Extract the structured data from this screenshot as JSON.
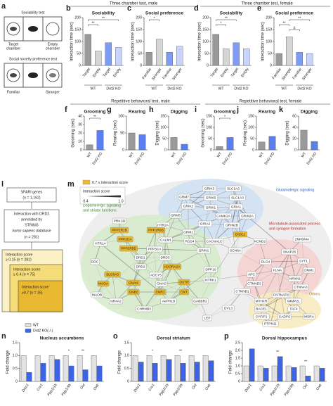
{
  "panel_a": {
    "label": "a",
    "test1": "Sociability test",
    "target": [
      "Target",
      "chamber"
    ],
    "empty": [
      "Empty",
      "chamber"
    ],
    "test2": "Social novelty preference test",
    "familiar": "Familiar",
    "stranger": "Stranger"
  },
  "headers": {
    "three_male": "Three chamber test, male",
    "three_female": "Three chamber test, female",
    "rep_male": "Repetitive behavioral test, male",
    "rep_female": "Repetitive behavioral test, female"
  },
  "three_chamber": [
    {
      "label": "b",
      "title": "Sociability",
      "ylabel": "Interaction time (sec)",
      "categories": [
        "Target",
        "Empty",
        "Target",
        "Empty"
      ],
      "groups": [
        "WT",
        "Drd2 KO"
      ],
      "values": [
        130,
        60,
        95,
        75
      ],
      "colors": [
        "#9a9a9a",
        "#d6d6d6",
        "#7f9cf5",
        "#c8d4fb"
      ],
      "ylim": [
        0,
        200
      ],
      "yticks": [
        0,
        50,
        100,
        150,
        200
      ],
      "significance": [
        {
          "text": "**",
          "between": [
            0,
            3
          ]
        },
        {
          "text": "**",
          "between": [
            0,
            1
          ]
        }
      ]
    },
    {
      "label": "c",
      "title": "Social preference",
      "ylabel": "Interaction time (sec)",
      "categories": [
        "Familiar",
        "Stranger",
        "Familiar",
        "Stranger"
      ],
      "groups": [
        "WT",
        "Drd2 KO"
      ],
      "values": [
        55,
        110,
        55,
        80
      ],
      "colors": [
        "#9a9a9a",
        "#d6d6d6",
        "#7f9cf5",
        "#c8d4fb"
      ],
      "ylim": [
        0,
        200
      ],
      "yticks": [
        0,
        50,
        100,
        150,
        200
      ],
      "significance": [
        {
          "text": "*",
          "between": [
            0,
            1
          ]
        }
      ]
    },
    {
      "label": "d",
      "title": "Sociability",
      "ylabel": "Interaction time (sec)",
      "categories": [
        "Target",
        "Empty",
        "Target",
        "Empty"
      ],
      "groups": [
        "WT",
        "Drd2 KO"
      ],
      "values": [
        130,
        70,
        95,
        70
      ],
      "colors": [
        "#9a9a9a",
        "#d6d6d6",
        "#7f9cf5",
        "#c8d4fb"
      ],
      "ylim": [
        0,
        200
      ],
      "yticks": [
        0,
        50,
        100,
        150,
        200
      ],
      "significance": [
        {
          "text": "**",
          "between": [
            0,
            2
          ]
        },
        {
          "text": "*",
          "between": [
            0,
            1
          ]
        }
      ]
    },
    {
      "label": "e",
      "title": "Social preference",
      "ylabel": "Interaction time (sec)",
      "categories": [
        "Familiar",
        "Stranger",
        "Familiar",
        "Stranger"
      ],
      "groups": [
        "WT",
        "Drd2 KO"
      ],
      "values": [
        50,
        120,
        55,
        50
      ],
      "colors": [
        "#9a9a9a",
        "#d6d6d6",
        "#7f9cf5",
        "#c8d4fb"
      ],
      "ylim": [
        0,
        200
      ],
      "yticks": [
        0,
        50,
        100,
        150,
        200
      ],
      "significance": [
        {
          "text": "**",
          "between": [
            1,
            3
          ]
        },
        {
          "text": "**",
          "between": [
            0,
            1
          ]
        },
        {
          "text": "#",
          "between": [
            1,
            2
          ]
        }
      ]
    }
  ],
  "repetitive": [
    {
      "label": "f",
      "title": "Grooming",
      "ylabel": "Grooming (sec)",
      "categories": [
        "WT",
        "Drd2 KO"
      ],
      "values": [
        6,
        23
      ],
      "colors": [
        "#9a9a9a",
        "#5b7ff0"
      ],
      "ylim": [
        0,
        40
      ],
      "yticks": [
        0,
        10,
        20,
        30,
        40
      ],
      "significance": [
        {
          "text": "**",
          "between": [
            0,
            1
          ]
        }
      ]
    },
    {
      "label": "g",
      "title": "Rearing",
      "ylabel": "Rearing (sec)",
      "categories": [
        "WT",
        "Drd2 KO"
      ],
      "values": [
        50,
        45
      ],
      "colors": [
        "#9a9a9a",
        "#5b7ff0"
      ],
      "ylim": [
        0,
        100
      ],
      "yticks": [
        0,
        50,
        100
      ]
    },
    {
      "label": "h",
      "title": "Digging",
      "ylabel": "Digging (sec)",
      "categories": [
        "WT",
        "Drd2 KO"
      ],
      "values": [
        55,
        25
      ],
      "colors": [
        "#9a9a9a",
        "#5b7ff0"
      ],
      "ylim": [
        0,
        150
      ],
      "yticks": [
        0,
        50,
        100,
        150
      ]
    },
    {
      "label": "i",
      "title": "Grooming",
      "ylabel": "Grooming (sec)",
      "categories": [
        "WT",
        "Drd2 KO"
      ],
      "values": [
        15,
        55
      ],
      "colors": [
        "#9a9a9a",
        "#5b7ff0"
      ],
      "ylim": [
        0,
        150
      ],
      "yticks": [
        0,
        50,
        100,
        150
      ],
      "significance": [
        {
          "text": "*",
          "between": [
            0,
            1
          ]
        }
      ]
    },
    {
      "label": "j",
      "title": "Rearing",
      "ylabel": "Rearing (sec)",
      "categories": [
        "WT",
        "Drd2 KO"
      ],
      "values": [
        35,
        60
      ],
      "colors": [
        "#9a9a9a",
        "#5b7ff0"
      ],
      "ylim": [
        0,
        150
      ],
      "yticks": [
        0,
        50,
        100,
        150
      ]
    },
    {
      "label": "k",
      "title": "Digging",
      "ylabel": "Digging (sec)",
      "categories": [
        "WT",
        "Drd2 KO"
      ],
      "values": [
        35,
        15
      ],
      "colors": [
        "#9a9a9a",
        "#5b7ff0"
      ],
      "ylim": [
        0,
        60
      ],
      "yticks": [
        0,
        20,
        40,
        60
      ]
    }
  ],
  "panel_l": {
    "label": "l",
    "box1": [
      "SFARI genes",
      "(n = 1,162)"
    ],
    "box2": [
      "Interaction with DRD2",
      "annotated by",
      "STRING",
      "homo sapiens database",
      "(n = 281)"
    ],
    "score1": [
      "Interaction score",
      "≥ 0.15 (n = 281)"
    ],
    "score2": [
      "Interaction score",
      "≥ 0.4 (n = 75)"
    ],
    "score3": [
      "Interaction score",
      "≥0.7 (n = 15)"
    ]
  },
  "panel_m": {
    "label": "m",
    "highlight_legend": "0.7 ≤ interaction score",
    "score_legend": "Interaction score",
    "score_min": 0.4,
    "score_max": {
      "value": 1,
      "label": "1.0"
    },
    "clusters": {
      "glutamate": "Glutamatergic signaling",
      "dopamine": [
        "Dopaminergic signaling",
        "and striatal functions"
      ],
      "microtubule": [
        "Microtubule-associated process",
        "and synapse formation"
      ],
      "others": "Others"
    },
    "nodes": [
      {
        "label": "GRIK3"
      },
      {
        "label": "SLC1A2"
      },
      {
        "label": "GRM7"
      },
      {
        "label": "GRIK5"
      },
      {
        "label": "SLC1A3"
      },
      {
        "label": "GRIK2"
      },
      {
        "label": "GRIK1"
      },
      {
        "label": "GRIA1"
      },
      {
        "label": "GRM5"
      },
      {
        "label": "CAMK2A"
      },
      {
        "label": "GRIN2A"
      },
      {
        "label": "HTR2A"
      },
      {
        "label": "GRIA2"
      },
      {
        "label": "GRIN2B"
      },
      {
        "label": "PRKCB"
      },
      {
        "label": "PPP1R1B",
        "highlight": true
      },
      {
        "label": "PPP1R9B",
        "highlight": true
      },
      {
        "label": "GRM1"
      },
      {
        "label": "DISC1",
        "highlight": true
      },
      {
        "label": "PPP2CA",
        "highlight": true
      },
      {
        "label": "CALM1"
      },
      {
        "label": "RGS4"
      },
      {
        "label": "CACNA1C"
      },
      {
        "label": "HTR1A"
      },
      {
        "label": "PPP2R5D",
        "highlight": true
      },
      {
        "label": "PPP3CA"
      },
      {
        "label": "GRIN1"
      },
      {
        "label": "SCN8A"
      },
      {
        "label": "DRD1"
      },
      {
        "label": "DRD3"
      },
      {
        "label": "DDC"
      },
      {
        "label": "DRD2"
      },
      {
        "label": "ADORA2A",
        "highlight": true
      },
      {
        "label": "DPP10"
      },
      {
        "label": "SLC6A3",
        "highlight": true
      },
      {
        "label": "ADCY5"
      },
      {
        "label": "MAOA",
        "highlight": true
      },
      {
        "label": "GNAI1",
        "highlight": true
      },
      {
        "label": "GNAS"
      },
      {
        "label": "OXTR",
        "highlight": true
      },
      {
        "label": "NTRK1"
      },
      {
        "label": "GNB2",
        "highlight": true
      },
      {
        "label": "CNR1",
        "highlight": true
      },
      {
        "label": "OXT",
        "highlight": true
      },
      {
        "label": "MAOB"
      },
      {
        "label": "NR4A2"
      },
      {
        "label": "AVPR1B"
      },
      {
        "label": "GABBR2"
      },
      {
        "label": "CHRNB3"
      },
      {
        "label": "DVL3"
      },
      {
        "label": "LEP"
      },
      {
        "label": "ZNF804A"
      },
      {
        "label": "SNAP25"
      },
      {
        "label": "DLG4"
      },
      {
        "label": "SYT1"
      },
      {
        "label": "FLNA"
      },
      {
        "label": "DNM1"
      },
      {
        "label": "APC"
      },
      {
        "label": "NRXN1"
      },
      {
        "label": "CTNND2"
      },
      {
        "label": "CTNNA3"
      },
      {
        "label": "CTNNB1"
      },
      {
        "label": "CNTNAP2"
      },
      {
        "label": "MTHFR"
      },
      {
        "label": "IMMP2L"
      },
      {
        "label": "BACE1"
      },
      {
        "label": "TAF4"
      },
      {
        "label": "CYFIP1"
      },
      {
        "label": "CADPS"
      },
      {
        "label": "MSRA"
      },
      {
        "label": "PTPN11"
      },
      {
        "label": "KCND2"
      }
    ]
  },
  "expression_legend": [
    {
      "name": "WT",
      "color": "#e2e2e2"
    },
    {
      "name": "Drd2 KO(-/-)",
      "color": "#3c64e6"
    }
  ],
  "expression": [
    {
      "label": "n",
      "title": "Nucleus accumbens",
      "ylabel": "Fold change",
      "categories": [
        "Disc1",
        "Cnr1",
        "Ppp1r1b",
        "Ppp1r9b",
        "Oxt",
        "Oxtr"
      ],
      "series": [
        {
          "color": "#e2e2e2",
          "values": [
            1,
            1,
            1,
            1,
            1,
            1
          ]
        },
        {
          "color": "#3c64e6",
          "values": [
            0.35,
            0.7,
            0.85,
            0.6,
            0.45,
            0.6
          ]
        }
      ],
      "ylim": [
        0,
        1.5
      ],
      "yticks": [
        0,
        0.5,
        {
          "value": 1,
          "label": "1.0"
        },
        1.5
      ],
      "significance": [
        null,
        null,
        null,
        "*",
        "**",
        null
      ]
    },
    {
      "label": "o",
      "title": "Dorsal striatum",
      "ylabel": "Fold change",
      "categories": [
        "Disc1",
        "Cnr1",
        "Ppp1r1b",
        "Ppp1r9b",
        "Oxt",
        "Oxtr"
      ],
      "series": [
        {
          "color": "#e2e2e2",
          "values": [
            1,
            1,
            1,
            1,
            1,
            1
          ]
        },
        {
          "color": "#3c64e6",
          "values": [
            0.75,
            0.7,
            0.85,
            0.7,
            0.75,
            0.8
          ]
        }
      ],
      "ylim": [
        0,
        1.5
      ],
      "yticks": [
        0,
        0.5,
        {
          "value": 1,
          "label": "1.0"
        },
        1.5
      ],
      "significance": [
        null,
        "*",
        null,
        "**",
        null,
        null
      ]
    },
    {
      "label": "p",
      "title": "Dorsal hippocampus",
      "ylabel": "Fold change",
      "categories": [
        "Disc1",
        "Cnr1",
        "Ppp1r1b",
        "Ppp1r9b",
        "Oxt",
        "Oxtr"
      ],
      "series": [
        {
          "color": "#e2e2e2",
          "values": [
            1,
            1,
            1,
            1,
            1,
            1
          ]
        },
        {
          "color": "#3c64e6",
          "values": [
            2.1,
            0.85,
            1.6,
            0.9,
            0.35,
            0.85
          ]
        }
      ],
      "ylim": [
        0,
        2.5
      ],
      "yticks": [
        0,
        0.5,
        {
          "value": 1,
          "label": "1.0"
        },
        1.5,
        {
          "value": 2,
          "label": "2.0"
        },
        2.5
      ],
      "significance": [
        null,
        null,
        "**",
        null,
        "**",
        null
      ]
    }
  ]
}
